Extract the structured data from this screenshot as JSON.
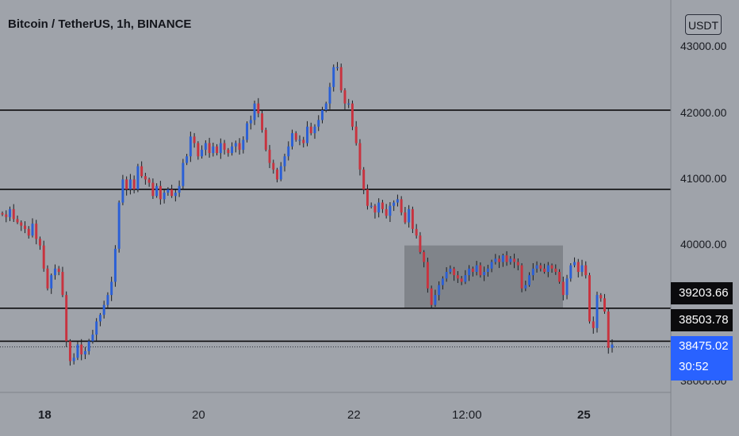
{
  "header": {
    "title": "Bitcoin / TetherUS, 1h, BINANCE",
    "currency": "USDT"
  },
  "price_axis": {
    "ticks": [
      "43000.00",
      "42000.00",
      "41000.00",
      "40000.00",
      "38000.00"
    ]
  },
  "time_axis": {
    "ticks": [
      "18",
      "20",
      "22",
      "12:00",
      "25"
    ]
  },
  "price_tags": {
    "level_1": "39203.66",
    "level_2": "38503.78",
    "last_price": "38475.02",
    "countdown": "30:52"
  },
  "colors": {
    "background": "#9fa3aa",
    "up_candle": "#2a5fd6",
    "down_candle": "#c8333f",
    "level_line": "#0b0b0d",
    "zone": "#6c6f74"
  },
  "chart_data": {
    "type": "candlestick",
    "title": "Bitcoin / TetherUS, 1h, BINANCE",
    "xlabel": "",
    "ylabel": "",
    "x_tick_labels": [
      "18",
      "20",
      "22",
      "12:00",
      "25"
    ],
    "y_tick_labels": [
      "43000.00",
      "42000.00",
      "41000.00",
      "40000.00",
      "38000.00"
    ],
    "ylim": [
      37500,
      43500
    ],
    "horizontal_levels": [
      42000,
      40800,
      39000,
      38500
    ],
    "consolidation_zone": {
      "y_range": [
        39000,
        39950
      ]
    },
    "closes": [
      40420,
      40380,
      40500,
      40350,
      40300,
      40250,
      40200,
      40100,
      40280,
      40050,
      39950,
      39600,
      39300,
      39500,
      39600,
      39550,
      39200,
      38500,
      38200,
      38250,
      38450,
      38300,
      38350,
      38500,
      38600,
      38800,
      38900,
      39050,
      39200,
      39400,
      39900,
      40600,
      40950,
      40800,
      40950,
      40800,
      41150,
      41000,
      40950,
      40900,
      40700,
      40850,
      40650,
      40750,
      40800,
      40700,
      40750,
      40850,
      41200,
      41300,
      41600,
      41500,
      41300,
      41400,
      41500,
      41350,
      41450,
      41350,
      41500,
      41400,
      41350,
      41450,
      41500,
      41400,
      41550,
      41800,
      41850,
      42100,
      41950,
      41700,
      41400,
      41200,
      41100,
      40950,
      41150,
      41300,
      41450,
      41650,
      41550,
      41550,
      41500,
      41750,
      41650,
      41750,
      41850,
      42000,
      42100,
      42350,
      42650,
      42650,
      42300,
      42100,
      42100,
      41750,
      41500,
      41100,
      40800,
      40550,
      40550,
      40450,
      40600,
      40500,
      40400,
      40550,
      40600,
      40650,
      40450,
      40300,
      40500,
      40200,
      40100,
      39850,
      39700,
      39300,
      39050,
      39200,
      39350,
      39450,
      39550,
      39600,
      39500,
      39450,
      39400,
      39500,
      39600,
      39550,
      39650,
      39500,
      39550,
      39600,
      39700,
      39750,
      39700,
      39800,
      39700,
      39750,
      39700,
      39650,
      39300,
      39350,
      39500,
      39600,
      39650,
      39600,
      39550,
      39650,
      39600,
      39550,
      39400,
      39200,
      39450,
      39650,
      39700,
      39550,
      39650,
      39500,
      38800,
      38700,
      39200,
      39150,
      38950,
      38400,
      38450
    ]
  }
}
